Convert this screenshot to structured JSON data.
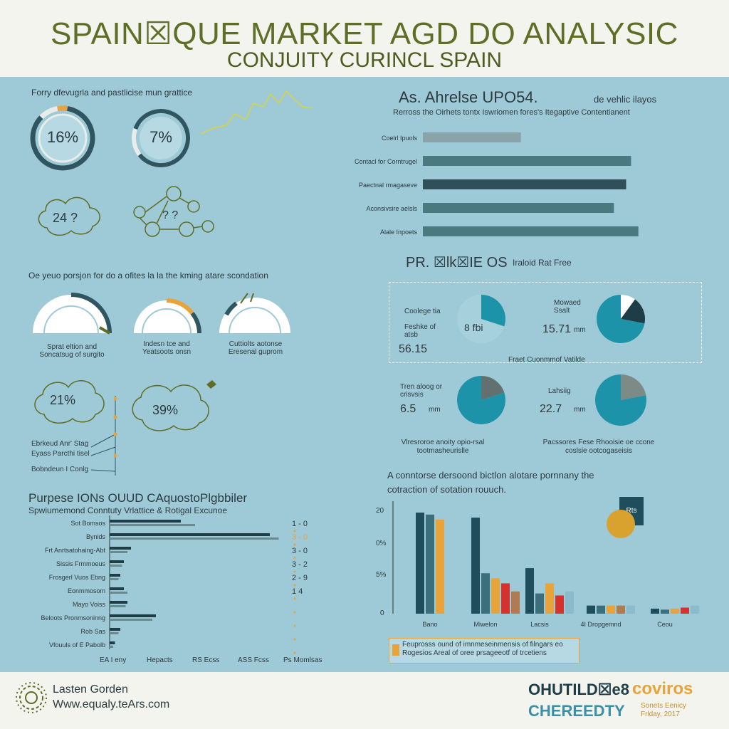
{
  "header": {
    "title": "SPAIN☒QUE MARKET AGD DO ANALYSIC",
    "subtitle": "CONJUITY CURINCL SPAIN"
  },
  "left_top": {
    "caption": "Forry dfevugrla and pastlicise mun grattice",
    "donuts": [
      {
        "label": "16%",
        "value": 16
      },
      {
        "label": "7%",
        "value": 7
      }
    ],
    "cloud_label": "24 ?",
    "network_label": "? ?"
  },
  "left_mid": {
    "caption": "Oe yeuo porsjon for do a ofites la la the kming atare scondation",
    "gauges": [
      {
        "caption": "Sprat eltion and Soncatsug of surgito",
        "value": 75
      },
      {
        "caption": "Indesn tce and Yeatsoots onsn",
        "value": 55
      },
      {
        "caption": "Cuttiolts aotonse Eresenal guprom",
        "value": 20
      }
    ],
    "clouds": [
      "21%",
      "39%"
    ],
    "notes": [
      "Ebrkeud Anr' Stag",
      "Eyass Parcthi tisel",
      "Bobndeun I Conlg"
    ]
  },
  "left_bottom": {
    "title": "Purpese IONs OUUD CAquostoPlgbbiler",
    "subtitle": "Spwiumemond Conntuty Vrlattice & Rotigal Excunoe",
    "footer_labels": [
      "EA I eny",
      "Hepacts",
      "RS Ecss",
      "ASS Fcss",
      "Ps Momlsas"
    ],
    "chart_data": {
      "type": "bar",
      "orientation": "horizontal",
      "categories": [
        "Sot Bomsos",
        "Bynids",
        "Frt Anrtsatohaing-Abt",
        "Sissis Frmmoeus",
        "Frosgerl Vuos Ebng",
        "Eonmmosom",
        "Mayo Voiss",
        "Beloots Pronmsoninng",
        "Rob Sas",
        "Vfouuls of E Pabolb"
      ],
      "series": [
        {
          "values": [
            40,
            90,
            12,
            8,
            6,
            8,
            10,
            26,
            6,
            3
          ]
        },
        {
          "values": [
            48,
            95,
            10,
            7,
            5,
            10,
            9,
            24,
            5,
            2
          ]
        }
      ],
      "right_labels": [
        "1 - 0",
        "3 - 0",
        "3 - 0",
        "3 - 2",
        "2 - 9",
        "1 4",
        "",
        "",
        "",
        ""
      ]
    }
  },
  "right_top": {
    "title": "As. Ahrelse UPO54.",
    "title_extra": "de vehlic ilayos",
    "subtitle": "Rerross the Oirhets tontx Iswriomen fores's Itegaptive Contentianent",
    "chart_data": {
      "type": "bar",
      "orientation": "horizontal",
      "categories": [
        "Coelrl Ipuols",
        "Contacl for Corntrugel",
        "Paectnal rmagaseve",
        "Aconsivsire aelsls",
        "Alale Inpoets"
      ],
      "values": [
        40,
        85,
        83,
        78,
        88
      ]
    }
  },
  "right_mid": {
    "title": "PR. ☒lk☒IE OS",
    "title_extra": "Iraloid Rat Free",
    "mid_caption": "Fraet Cuonmmof Vatilde",
    "pies": [
      {
        "label": "Coolege tia",
        "sub": "Feshke of atsb",
        "value_text": "56.15",
        "inner": "8 fbi",
        "slices": [
          30,
          70
        ]
      },
      {
        "label": "Mowaed Ssalt",
        "sub": "",
        "value_text": "15.71",
        "unit": "mm",
        "slices": [
          10,
          18,
          72
        ]
      },
      {
        "label": "Tren aloog or crisvsis",
        "sub": "",
        "value_text": "6.5",
        "unit": "mm",
        "slices": [
          20,
          80
        ]
      },
      {
        "label": "Lahsiig",
        "sub": "",
        "value_text": "22.7",
        "unit": "mm",
        "slices": [
          22,
          78
        ]
      }
    ],
    "notes": [
      "Vlresroroe anoity opio-rsal tootmasheurislle",
      "Pacssores Fese Rhooisie oe ccone coslsie ootcogaseisis"
    ]
  },
  "right_bottom": {
    "caption": "A conntorse dersoond bictlon alotare pornnany the cotraction of sotation rouuch.",
    "badge": "Rts",
    "note": "Feuprosss ound of imnmeseinmensis of filngars eo Rogesios Areal of oree prsageeotf of trcetiens",
    "y_ticks": [
      "20",
      "0%",
      "5%",
      "0"
    ],
    "chart_data": {
      "type": "bar",
      "categories": [
        "Bano",
        "Miwelon",
        "Lacsis",
        "4I Dropgemnd",
        "Ceou"
      ],
      "series": [
        {
          "color": "#1f4d5c",
          "values": [
            100,
            95,
            45,
            8,
            5
          ]
        },
        {
          "color": "#3c6f7c",
          "values": [
            98,
            40,
            20,
            8,
            4
          ]
        },
        {
          "color": "#e8a43a",
          "values": [
            93,
            35,
            30,
            8,
            5
          ]
        },
        {
          "color": "#d4312f",
          "values": [
            0,
            30,
            18,
            0,
            6
          ]
        },
        {
          "color": "#b07a52",
          "values": [
            0,
            22,
            0,
            8,
            0
          ]
        },
        {
          "color": "#8bbccd",
          "values": [
            0,
            0,
            22,
            8,
            8
          ]
        }
      ],
      "ylim": [
        0,
        100
      ]
    }
  },
  "footer": {
    "org": "Lasten Gorden",
    "url": "Www.equaly.teArs.com",
    "brand1": "OHUTILD☒e8",
    "brand2": "coviros",
    "brand3": "CHEREEDTY",
    "brand_small": "Sonets Eenicy Frlday, 2017"
  },
  "colors": {
    "background_panel": "#9ec9d6",
    "dark_teal": "#2f5660",
    "teal": "#1d93aa",
    "orange": "#e8a43a",
    "olive": "#5e6e27",
    "cream": "#f4f4ee"
  }
}
